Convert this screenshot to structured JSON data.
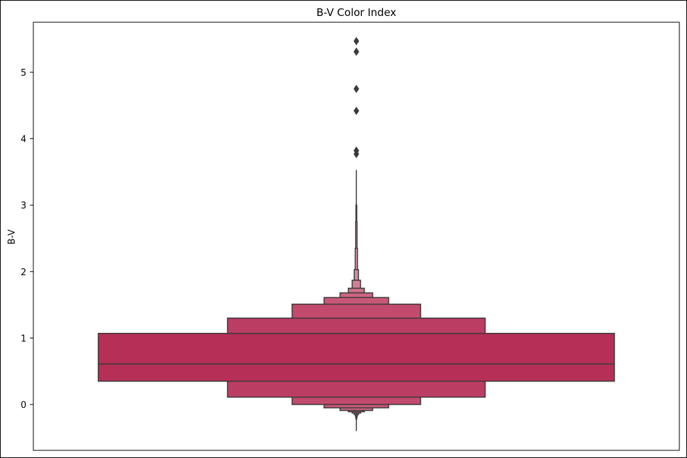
{
  "chart_data": {
    "type": "boxen",
    "title": "B-V Color Index",
    "xlabel": "",
    "ylabel": "B-V",
    "ylim": [
      -0.7,
      5.75
    ],
    "yticks": [
      0,
      1,
      2,
      3,
      4,
      5
    ],
    "colors": {
      "base": "#b52f57",
      "edge": "#3a3a3a",
      "outlier": "#3a3a3a"
    },
    "median": 0.61,
    "boxes": [
      {
        "level": 1,
        "low": 0.35,
        "high": 1.07
      },
      {
        "level": 2,
        "low": 0.11,
        "high": 1.3
      },
      {
        "level": 3,
        "low": 0.0,
        "high": 1.51
      },
      {
        "level": 4,
        "low": -0.05,
        "high": 1.61
      },
      {
        "level": 5,
        "low": -0.09,
        "high": 1.68
      },
      {
        "level": 6,
        "low": -0.11,
        "high": 1.75
      },
      {
        "level": 7,
        "low": -0.13,
        "high": 1.87
      },
      {
        "level": 8,
        "low": -0.15,
        "high": 2.03
      },
      {
        "level": 9,
        "low": -0.17,
        "high": 2.35
      },
      {
        "level": 10,
        "low": -0.19,
        "high": 2.75
      },
      {
        "level": 11,
        "low": -0.22,
        "high": 3.0
      }
    ],
    "whisker": [
      -0.4,
      3.53
    ],
    "outliers": [
      3.77,
      3.82,
      4.42,
      4.75,
      5.31,
      5.47
    ]
  }
}
